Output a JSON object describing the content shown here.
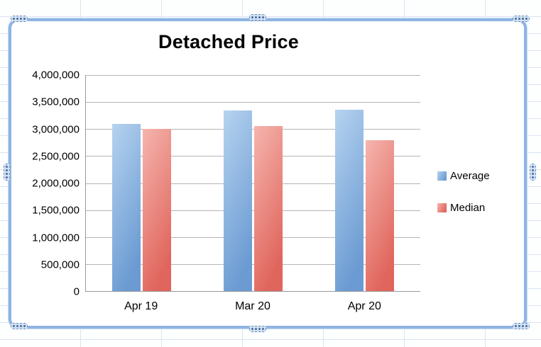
{
  "chart_data": {
    "type": "bar",
    "title": "Detached Price",
    "categories": [
      "Apr 19",
      "Mar 20",
      "Apr 20"
    ],
    "series": [
      {
        "name": "Average",
        "color": "#6b9bd2",
        "color_light": "#b6d3f0",
        "values": [
          3100000,
          3350000,
          3360000
        ]
      },
      {
        "name": "Median",
        "color": "#e0655c",
        "color_light": "#f5b5ae",
        "values": [
          3000000,
          3050000,
          2800000
        ]
      }
    ],
    "ylim": [
      0,
      4000000
    ],
    "ytick_interval": 500000,
    "ytick_labels": [
      "0",
      "500,000",
      "1,000,000",
      "1,500,000",
      "2,000,000",
      "2,500,000",
      "3,000,000",
      "3,500,000",
      "4,000,000"
    ],
    "grid": true,
    "legend_position": "right",
    "xlabel": "",
    "ylabel": ""
  },
  "colors": {
    "selection_frame": "#8eb4e3",
    "gridline": "#b5b5b5",
    "axis": "#9a9a9a",
    "sheet_gridline": "#d9e4f2"
  }
}
